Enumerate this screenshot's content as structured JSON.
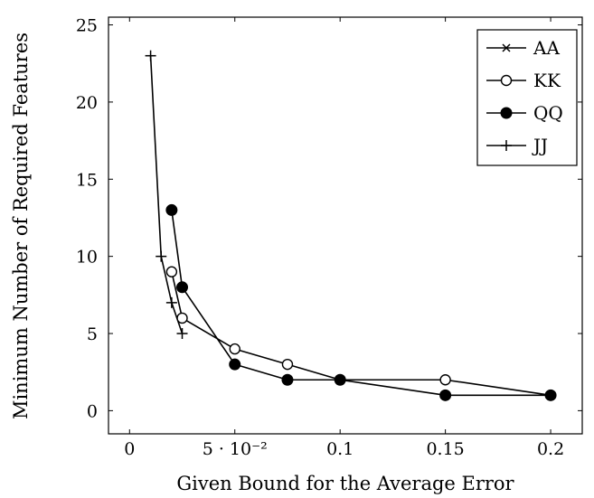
{
  "chart_data": {
    "type": "line",
    "title": "",
    "xlabel": "Given Bound for the Average Error",
    "ylabel": "Minimum Number of Required Features",
    "xlim": [
      -0.01,
      0.215
    ],
    "ylim": [
      -1.5,
      25.5
    ],
    "x_ticks": [
      {
        "value": 0,
        "label": "0"
      },
      {
        "value": 0.05,
        "label": "5 · 10⁻²"
      },
      {
        "value": 0.1,
        "label": "0.1"
      },
      {
        "value": 0.15,
        "label": "0.15"
      },
      {
        "value": 0.2,
        "label": "0.2"
      }
    ],
    "y_ticks": [
      {
        "value": 0,
        "label": "0"
      },
      {
        "value": 5,
        "label": "5"
      },
      {
        "value": 10,
        "label": "10"
      },
      {
        "value": 15,
        "label": "15"
      },
      {
        "value": 20,
        "label": "20"
      },
      {
        "value": 25,
        "label": "25"
      }
    ],
    "grid": false,
    "legend_position": "top-right",
    "series": [
      {
        "name": "AA",
        "marker": "x",
        "color": "#000000",
        "x": [],
        "y": []
      },
      {
        "name": "KK",
        "marker": "circle-open",
        "color": "#000000",
        "x": [
          0.02,
          0.025,
          0.05,
          0.075,
          0.1,
          0.15,
          0.2
        ],
        "y": [
          9,
          6,
          4,
          3,
          2,
          2,
          1
        ]
      },
      {
        "name": "QQ",
        "marker": "circle-filled",
        "color": "#000000",
        "x": [
          0.02,
          0.025,
          0.05,
          0.075,
          0.1,
          0.15,
          0.2
        ],
        "y": [
          13,
          8,
          3,
          2,
          2,
          1,
          1
        ]
      },
      {
        "name": "JJ",
        "marker": "plus",
        "color": "#000000",
        "x": [
          0.01,
          0.015,
          0.02,
          0.025
        ],
        "y": [
          23,
          10,
          7,
          5
        ]
      }
    ]
  }
}
